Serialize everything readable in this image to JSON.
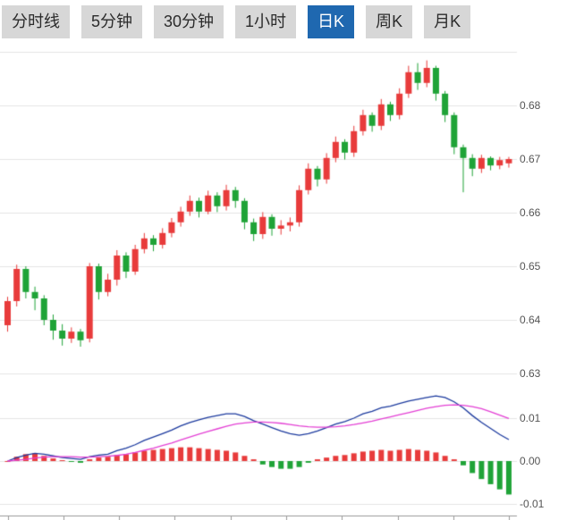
{
  "toolbar": {
    "tabs": [
      {
        "label": "分时线",
        "active": false
      },
      {
        "label": "5分钟",
        "active": false
      },
      {
        "label": "30分钟",
        "active": false
      },
      {
        "label": "1小时",
        "active": false
      },
      {
        "label": "日K",
        "active": true
      },
      {
        "label": "周K",
        "active": false
      },
      {
        "label": "月K",
        "active": false
      }
    ],
    "active_bg": "#1f68b0",
    "inactive_bg": "#d7d7d7"
  },
  "chart_data": {
    "type": "candlestick",
    "title": "",
    "grid_on": true,
    "grid_color": "#e4e4e4",
    "axis_color": "#9a9a9a",
    "x_tick_count": 10,
    "main": {
      "type": "candlestick",
      "y_tick_labels": [
        "0.68",
        "0.67",
        "0.66",
        "0.65",
        "0.64",
        "0.63"
      ],
      "grid_values": [
        0.69,
        0.68,
        0.67,
        0.66,
        0.65,
        0.64,
        0.63
      ],
      "y_range": [
        0.628,
        0.6905
      ],
      "up_color": "#e83b3b",
      "down_color": "#1fa337",
      "candle_order": "open,close,low,high",
      "candles": [
        [
          0.639,
          0.6435,
          0.6378,
          0.6443
        ],
        [
          0.6435,
          0.6495,
          0.6425,
          0.6503
        ],
        [
          0.6495,
          0.6452,
          0.644,
          0.65
        ],
        [
          0.6452,
          0.644,
          0.6418,
          0.6462
        ],
        [
          0.644,
          0.64,
          0.639,
          0.6446
        ],
        [
          0.64,
          0.638,
          0.6363,
          0.641
        ],
        [
          0.638,
          0.6365,
          0.6352,
          0.6392
        ],
        [
          0.6365,
          0.6378,
          0.6357,
          0.6386
        ],
        [
          0.6378,
          0.6362,
          0.635,
          0.6383
        ],
        [
          0.6365,
          0.65,
          0.6358,
          0.6506
        ],
        [
          0.65,
          0.6452,
          0.6438,
          0.6505
        ],
        [
          0.6452,
          0.6475,
          0.6444,
          0.6486
        ],
        [
          0.6475,
          0.652,
          0.6464,
          0.653
        ],
        [
          0.652,
          0.649,
          0.6478,
          0.6526
        ],
        [
          0.649,
          0.6532,
          0.6484,
          0.654
        ],
        [
          0.6532,
          0.6552,
          0.6524,
          0.6562
        ],
        [
          0.6552,
          0.654,
          0.6528,
          0.6558
        ],
        [
          0.654,
          0.6562,
          0.6533,
          0.6571
        ],
        [
          0.6562,
          0.6582,
          0.6554,
          0.659
        ],
        [
          0.6582,
          0.6602,
          0.6574,
          0.6611
        ],
        [
          0.6602,
          0.6622,
          0.6594,
          0.6632
        ],
        [
          0.6622,
          0.6602,
          0.6591,
          0.6628
        ],
        [
          0.6602,
          0.6632,
          0.6597,
          0.6641
        ],
        [
          0.6632,
          0.6612,
          0.6601,
          0.6638
        ],
        [
          0.6612,
          0.6642,
          0.6604,
          0.6652
        ],
        [
          0.6642,
          0.6622,
          0.6609,
          0.6648
        ],
        [
          0.6622,
          0.6582,
          0.6569,
          0.6627
        ],
        [
          0.6582,
          0.656,
          0.6547,
          0.6589
        ],
        [
          0.656,
          0.6592,
          0.6551,
          0.6601
        ],
        [
          0.6592,
          0.657,
          0.6557,
          0.6597
        ],
        [
          0.657,
          0.6576,
          0.6559,
          0.6586
        ],
        [
          0.6576,
          0.6582,
          0.6565,
          0.6591
        ],
        [
          0.6582,
          0.6642,
          0.6574,
          0.6651
        ],
        [
          0.6642,
          0.6682,
          0.6634,
          0.6692
        ],
        [
          0.6682,
          0.6662,
          0.6649,
          0.6687
        ],
        [
          0.6662,
          0.6702,
          0.6654,
          0.6711
        ],
        [
          0.6702,
          0.6732,
          0.6694,
          0.6742
        ],
        [
          0.6732,
          0.6712,
          0.6699,
          0.6737
        ],
        [
          0.6712,
          0.6752,
          0.6704,
          0.6762
        ],
        [
          0.6752,
          0.6782,
          0.6744,
          0.6792
        ],
        [
          0.6782,
          0.6762,
          0.6751,
          0.6787
        ],
        [
          0.6762,
          0.6802,
          0.6754,
          0.6812
        ],
        [
          0.6802,
          0.6782,
          0.6771,
          0.6807
        ],
        [
          0.6782,
          0.6822,
          0.6774,
          0.6832
        ],
        [
          0.6822,
          0.6862,
          0.6814,
          0.6874
        ],
        [
          0.6862,
          0.6842,
          0.6829,
          0.6879
        ],
        [
          0.6842,
          0.687,
          0.6834,
          0.6884
        ],
        [
          0.687,
          0.6822,
          0.6809,
          0.6874
        ],
        [
          0.6822,
          0.6782,
          0.6769,
          0.6827
        ],
        [
          0.6782,
          0.6722,
          0.6709,
          0.6787
        ],
        [
          0.6722,
          0.6702,
          0.6638,
          0.6727
        ],
        [
          0.6702,
          0.6682,
          0.6668,
          0.6709
        ],
        [
          0.6682,
          0.6702,
          0.6674,
          0.6708
        ],
        [
          0.6702,
          0.6688,
          0.6679,
          0.6705
        ],
        [
          0.6688,
          0.6698,
          0.6681,
          0.6704
        ],
        [
          0.6692,
          0.67,
          0.6684,
          0.6704
        ]
      ]
    },
    "indicator": {
      "type": "macd",
      "y_tick_labels": [
        "0.01",
        "0.00",
        "-0.01"
      ],
      "grid_values": [
        0.01,
        0,
        -0.01
      ],
      "y_range": [
        -0.012,
        0.016
      ],
      "dif_color": "#1c3a9e",
      "dea_color": "#e33fd4",
      "dif": [
        0.0,
        0.0008,
        0.0014,
        0.0018,
        0.0016,
        0.0012,
        0.0008,
        0.0006,
        0.0004,
        0.001,
        0.0014,
        0.0016,
        0.0024,
        0.003,
        0.0038,
        0.0048,
        0.0056,
        0.0064,
        0.0072,
        0.0082,
        0.009,
        0.0096,
        0.0102,
        0.0106,
        0.011,
        0.011,
        0.0104,
        0.0094,
        0.0086,
        0.0078,
        0.007,
        0.0064,
        0.006,
        0.0064,
        0.007,
        0.0078,
        0.0086,
        0.0092,
        0.01,
        0.011,
        0.0116,
        0.0124,
        0.0128,
        0.0134,
        0.014,
        0.0144,
        0.0148,
        0.0152,
        0.0148,
        0.0138,
        0.0124,
        0.0106,
        0.009,
        0.0076,
        0.0062,
        0.005
      ],
      "dea": [
        0.0,
        0.0002,
        0.0004,
        0.0007,
        0.0009,
        0.001,
        0.001,
        0.001,
        0.0009,
        0.0009,
        0.001,
        0.0011,
        0.0013,
        0.0016,
        0.002,
        0.0025,
        0.003,
        0.0036,
        0.0042,
        0.0049,
        0.0056,
        0.0063,
        0.0069,
        0.0075,
        0.0081,
        0.0086,
        0.0089,
        0.0091,
        0.0091,
        0.009,
        0.0088,
        0.0085,
        0.0082,
        0.008,
        0.0079,
        0.0079,
        0.008,
        0.0082,
        0.0085,
        0.0089,
        0.0093,
        0.0098,
        0.0103,
        0.0108,
        0.0113,
        0.0118,
        0.0123,
        0.0127,
        0.013,
        0.0131,
        0.013,
        0.0127,
        0.0122,
        0.0115,
        0.0107,
        0.0099
      ],
      "hist": [
        0.0,
        0.001,
        0.0016,
        0.0018,
        0.0012,
        0.0006,
        0.0002,
        -0.0002,
        -0.0004,
        0.0004,
        0.0008,
        0.001,
        0.0014,
        0.0016,
        0.002,
        0.0024,
        0.0026,
        0.0028,
        0.003,
        0.0032,
        0.0032,
        0.003,
        0.0028,
        0.0026,
        0.0024,
        0.002,
        0.0012,
        0.0004,
        -0.0008,
        -0.0014,
        -0.0018,
        -0.0018,
        -0.0014,
        -0.0004,
        0.0004,
        0.0008,
        0.0012,
        0.0014,
        0.0018,
        0.0022,
        0.0024,
        0.0026,
        0.0024,
        0.0026,
        0.0028,
        0.0026,
        0.0024,
        0.002,
        0.0012,
        0.0004,
        -0.001,
        -0.0028,
        -0.0042,
        -0.0054,
        -0.0066,
        -0.0078
      ]
    }
  }
}
